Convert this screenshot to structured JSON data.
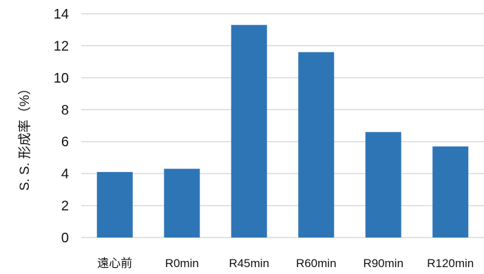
{
  "chart_data": {
    "type": "bar",
    "categories": [
      "遠心前",
      "R0min",
      "R45min",
      "R60min",
      "R90min",
      "R120min"
    ],
    "values": [
      4.1,
      4.3,
      13.3,
      11.6,
      6.6,
      5.7
    ],
    "ylabel": "S. S. 形成率（%）",
    "ylim": [
      0,
      14
    ],
    "yticks": [
      "0",
      "2",
      "4",
      "6",
      "8",
      "10",
      "12",
      "14"
    ],
    "grid": true,
    "legend": "none",
    "bar_color": "#2e75b6",
    "grid_color": "#d9d9d9"
  }
}
